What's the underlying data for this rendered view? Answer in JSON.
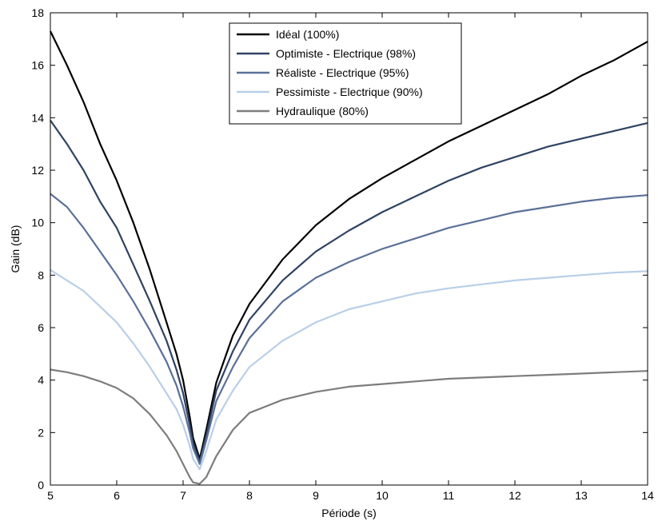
{
  "chart_data": {
    "type": "line",
    "xlabel": "Période (s)",
    "ylabel": "Gain (dB)",
    "xlim": [
      5,
      14
    ],
    "ylim": [
      0,
      18
    ],
    "xticks": [
      5,
      6,
      7,
      8,
      9,
      10,
      11,
      12,
      13,
      14
    ],
    "yticks": [
      0,
      2,
      4,
      6,
      8,
      10,
      12,
      14,
      16,
      18
    ],
    "grid": false,
    "legend_position": "top-center",
    "series": [
      {
        "name": "Idéal (100%)",
        "color": "#000000",
        "x": [
          5.0,
          5.25,
          5.5,
          5.75,
          6.0,
          6.25,
          6.5,
          6.75,
          6.9,
          7.0,
          7.1,
          7.15,
          7.25,
          7.35,
          7.5,
          7.75,
          8.0,
          8.5,
          9.0,
          9.5,
          10.0,
          10.5,
          11.0,
          11.5,
          12.0,
          12.5,
          13.0,
          13.5,
          14.0
        ],
        "y": [
          17.3,
          16.0,
          14.6,
          13.0,
          11.6,
          10.0,
          8.2,
          6.2,
          5.0,
          4.0,
          2.6,
          1.8,
          1.0,
          2.1,
          3.9,
          5.7,
          6.9,
          8.6,
          9.9,
          10.9,
          11.7,
          12.4,
          13.1,
          13.7,
          14.3,
          14.9,
          15.6,
          16.2,
          16.9
        ]
      },
      {
        "name": "Optimiste - Electrique (98%)",
        "color": "#2f4263",
        "x": [
          5.0,
          5.25,
          5.5,
          5.75,
          6.0,
          6.25,
          6.5,
          6.75,
          6.9,
          7.0,
          7.1,
          7.15,
          7.25,
          7.35,
          7.5,
          7.75,
          8.0,
          8.5,
          9.0,
          9.5,
          10.0,
          10.5,
          11.0,
          11.5,
          12.0,
          12.5,
          13.0,
          13.5,
          14.0
        ],
        "y": [
          13.9,
          13.0,
          12.0,
          10.8,
          9.8,
          8.4,
          7.0,
          5.5,
          4.4,
          3.5,
          2.3,
          1.6,
          0.9,
          1.9,
          3.6,
          5.1,
          6.3,
          7.8,
          8.9,
          9.7,
          10.4,
          11.0,
          11.6,
          12.1,
          12.5,
          12.9,
          13.2,
          13.5,
          13.8
        ]
      },
      {
        "name": "Réaliste - Electrique (95%)",
        "color": "#5b7098",
        "x": [
          5.0,
          5.25,
          5.5,
          5.75,
          6.0,
          6.25,
          6.5,
          6.75,
          6.9,
          7.0,
          7.1,
          7.15,
          7.25,
          7.35,
          7.5,
          7.75,
          8.0,
          8.5,
          9.0,
          9.5,
          10.0,
          10.5,
          11.0,
          11.5,
          12.0,
          12.5,
          13.0,
          13.5,
          14.0
        ],
        "y": [
          11.1,
          10.6,
          9.8,
          8.9,
          8.0,
          7.0,
          5.9,
          4.7,
          3.8,
          3.0,
          2.0,
          1.4,
          0.8,
          1.7,
          3.2,
          4.5,
          5.6,
          7.0,
          7.9,
          8.5,
          9.0,
          9.4,
          9.8,
          10.1,
          10.4,
          10.6,
          10.8,
          10.95,
          11.05
        ]
      },
      {
        "name": "Pessimiste - Electrique (90%)",
        "color": "#b9cfe8",
        "x": [
          5.0,
          5.25,
          5.5,
          5.75,
          6.0,
          6.25,
          6.5,
          6.75,
          6.9,
          7.0,
          7.1,
          7.15,
          7.25,
          7.35,
          7.5,
          7.75,
          8.0,
          8.5,
          9.0,
          9.5,
          10.0,
          10.5,
          11.0,
          11.5,
          12.0,
          12.5,
          13.0,
          13.5,
          14.0
        ],
        "y": [
          8.2,
          7.8,
          7.4,
          6.8,
          6.2,
          5.4,
          4.5,
          3.5,
          2.9,
          2.3,
          1.5,
          1.0,
          0.6,
          1.3,
          2.5,
          3.6,
          4.5,
          5.5,
          6.2,
          6.7,
          7.0,
          7.3,
          7.5,
          7.65,
          7.8,
          7.9,
          8.0,
          8.1,
          8.15
        ]
      },
      {
        "name": "Hydraulique (80%)",
        "color": "#7d7d7d",
        "x": [
          5.0,
          5.25,
          5.5,
          5.75,
          6.0,
          6.25,
          6.5,
          6.75,
          6.9,
          7.0,
          7.1,
          7.15,
          7.25,
          7.35,
          7.5,
          7.75,
          8.0,
          8.5,
          9.0,
          9.5,
          10.0,
          10.5,
          11.0,
          11.5,
          12.0,
          12.5,
          13.0,
          13.5,
          14.0
        ],
        "y": [
          4.4,
          4.3,
          4.15,
          3.95,
          3.7,
          3.3,
          2.7,
          1.9,
          1.3,
          0.8,
          0.3,
          0.1,
          0.05,
          0.3,
          1.1,
          2.1,
          2.75,
          3.25,
          3.55,
          3.75,
          3.85,
          3.95,
          4.05,
          4.1,
          4.15,
          4.2,
          4.25,
          4.3,
          4.35
        ]
      }
    ]
  }
}
